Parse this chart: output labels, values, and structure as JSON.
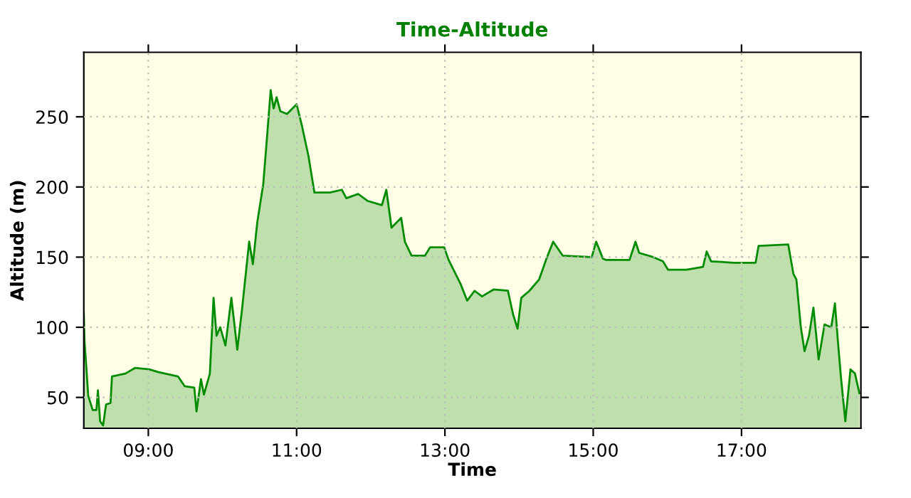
{
  "chart_data": {
    "type": "area",
    "title": "Time-Altitude",
    "xlabel": "Time",
    "ylabel": "Altitude (m)",
    "xlim": [
      8.13,
      18.61
    ],
    "ylim": [
      28,
      296
    ],
    "xticks": [
      {
        "value": 9,
        "label": "09:00"
      },
      {
        "value": 11,
        "label": "11:00"
      },
      {
        "value": 13,
        "label": "13:00"
      },
      {
        "value": 15,
        "label": "15:00"
      },
      {
        "value": 17,
        "label": "17:00"
      }
    ],
    "yticks": [
      50,
      100,
      150,
      200,
      250
    ],
    "grid": true,
    "line_style": "solid",
    "series": [
      {
        "color": "#008c00",
        "x": [
          8.13,
          8.14,
          8.19,
          8.25,
          8.3,
          8.32,
          8.35,
          8.39,
          8.43,
          8.49,
          8.51,
          8.69,
          8.82,
          9.01,
          9.14,
          9.4,
          9.49,
          9.62,
          9.65,
          9.71,
          9.75,
          9.83,
          9.88,
          9.92,
          9.97,
          10.04,
          10.12,
          10.2,
          10.26,
          10.36,
          10.41,
          10.47,
          10.55,
          10.6,
          10.65,
          10.69,
          10.73,
          10.78,
          10.87,
          11.0,
          11.07,
          11.16,
          11.24,
          11.45,
          11.61,
          11.67,
          11.83,
          11.96,
          12.15,
          12.21,
          12.28,
          12.41,
          12.46,
          12.55,
          12.73,
          12.8,
          12.99,
          13.05,
          13.21,
          13.3,
          13.4,
          13.5,
          13.66,
          13.85,
          13.92,
          13.98,
          14.03,
          14.14,
          14.27,
          14.37,
          14.46,
          14.59,
          14.98,
          15.04,
          15.13,
          15.17,
          15.49,
          15.57,
          15.62,
          15.81,
          15.94,
          16.01,
          16.26,
          16.48,
          16.53,
          16.59,
          16.9,
          17.19,
          17.23,
          17.63,
          17.7,
          17.74,
          17.8,
          17.85,
          17.91,
          17.97,
          18.04,
          18.12,
          18.21,
          18.26,
          18.3,
          18.34,
          18.4,
          18.47,
          18.53,
          18.59
        ],
        "values": [
          110,
          90,
          51,
          41,
          41,
          55,
          33,
          30,
          45,
          46,
          65,
          67,
          71,
          70,
          68,
          65,
          58,
          57,
          40,
          63,
          52,
          67,
          121,
          94,
          100,
          87,
          121,
          84,
          111,
          161,
          145,
          175,
          202,
          235,
          269,
          256,
          264,
          254,
          252,
          259,
          244,
          222,
          196,
          196,
          198,
          192,
          195,
          190,
          187,
          198,
          171,
          178,
          161,
          151,
          151,
          157,
          157,
          148,
          131,
          119,
          126,
          122,
          127,
          126,
          109,
          99,
          121,
          126,
          134,
          149,
          161,
          151,
          150,
          161,
          149,
          148,
          148,
          161,
          153,
          150,
          147,
          141,
          141,
          143,
          154,
          147,
          146,
          146,
          158,
          159,
          138,
          134,
          100,
          83,
          94,
          114,
          77,
          102,
          100,
          117,
          90,
          65,
          33,
          70,
          67,
          53
        ]
      }
    ]
  }
}
